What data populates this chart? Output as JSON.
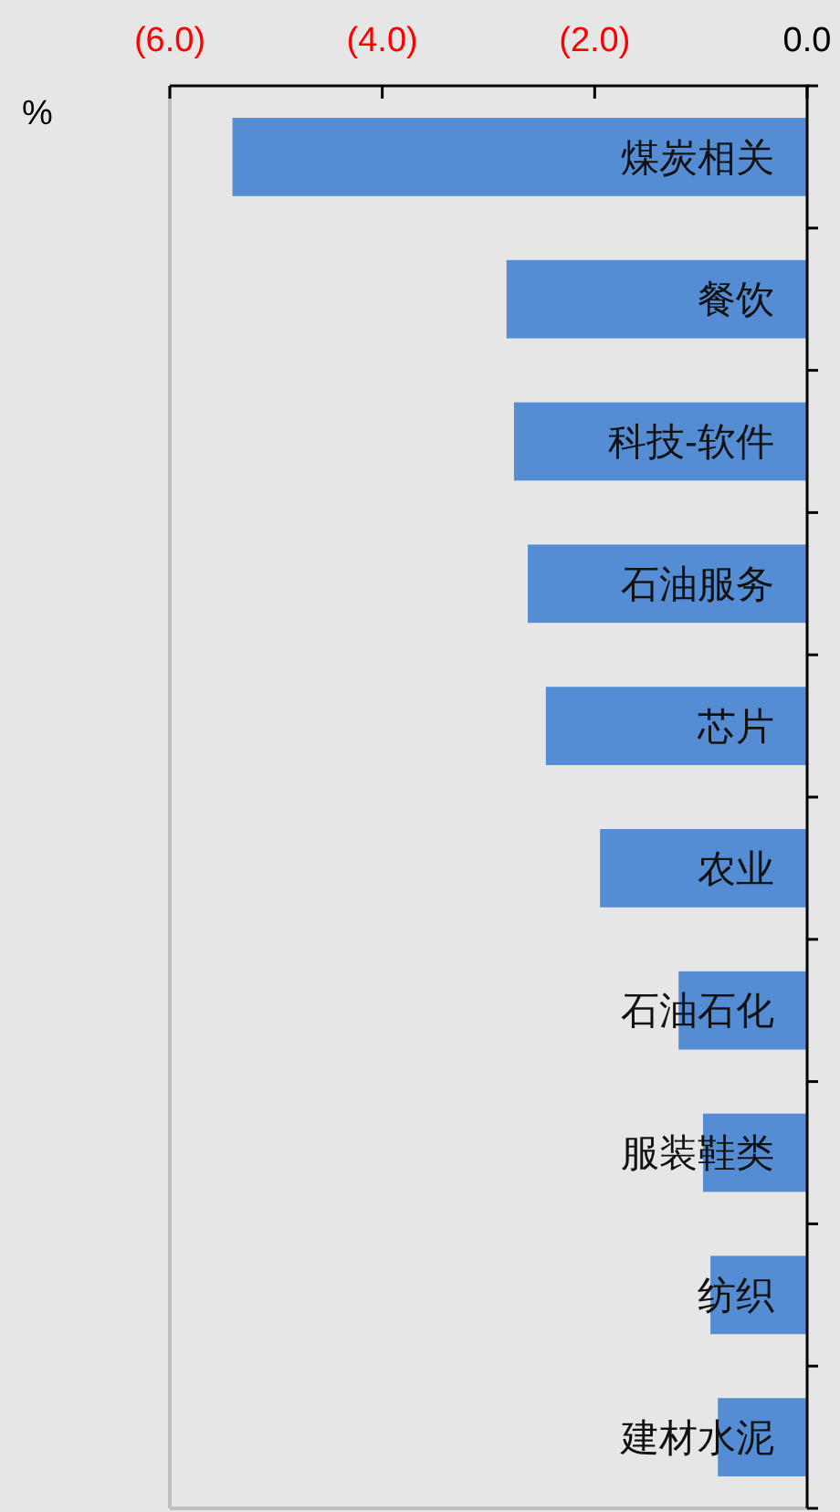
{
  "chart_data": {
    "type": "bar",
    "orientation": "horizontal",
    "xlabel": "%",
    "categories": [
      "煤炭相关",
      "餐饮",
      "科技-软件",
      "石油服务",
      "芯片",
      "农业",
      "石油石化",
      "服装鞋类",
      "纺织",
      "建材水泥"
    ],
    "values": [
      -5.41,
      -2.83,
      -2.76,
      -2.63,
      -2.46,
      -1.95,
      -1.21,
      -0.98,
      -0.91,
      -0.84
    ],
    "color": "#548dd4",
    "xlim": [
      -6,
      0
    ],
    "xticks": [
      {
        "value": -6,
        "label": "(6.0)"
      },
      {
        "value": -4,
        "label": "(4.0)"
      },
      {
        "value": -2,
        "label": "(2.0)"
      },
      {
        "value": 0,
        "label": "0.0"
      }
    ],
    "grid": false
  }
}
